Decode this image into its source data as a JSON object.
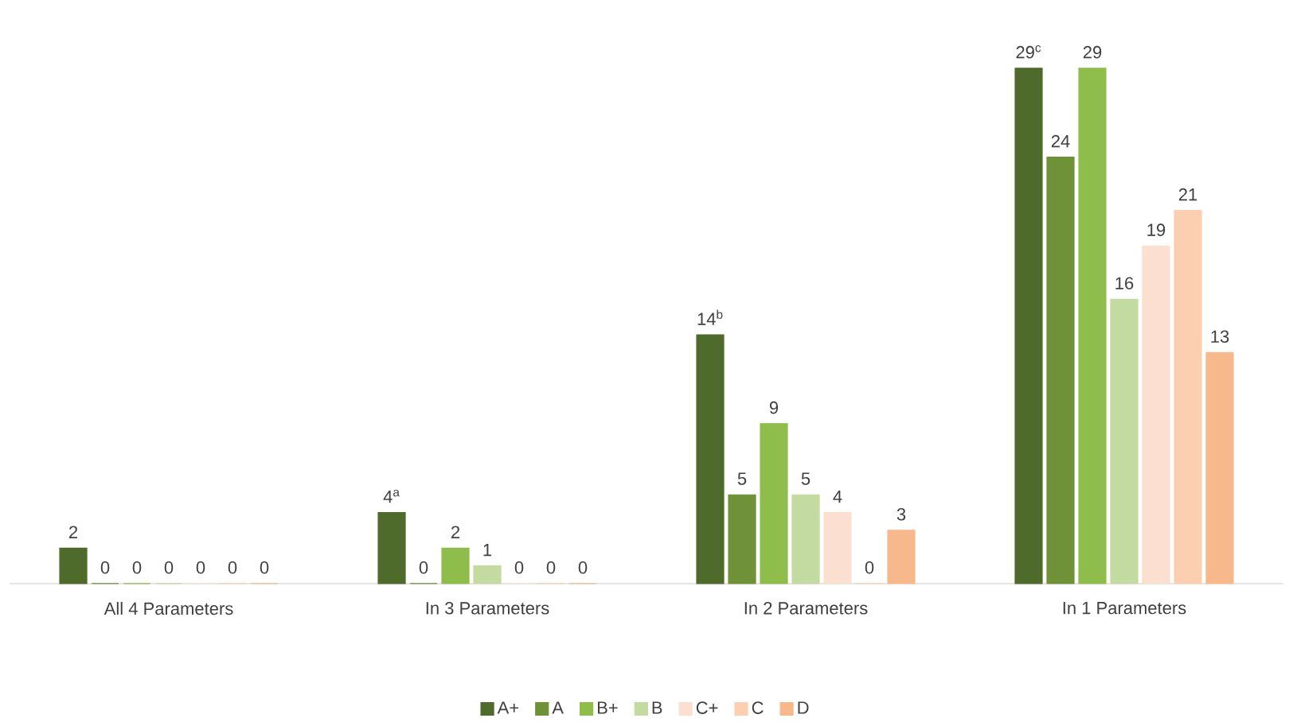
{
  "chart_data": {
    "type": "bar",
    "categories": [
      "All 4 Parameters",
      "In 3 Parameters",
      "In 2 Parameters",
      "In 1 Parameters"
    ],
    "series": [
      {
        "name": "A+",
        "color": "#4f6b2c",
        "values": [
          2,
          4,
          14,
          29
        ],
        "value_labels": [
          "2",
          "4$^{a}$",
          "14$^{b}$",
          "29$^{c}$"
        ]
      },
      {
        "name": "A",
        "color": "#6f9239",
        "values": [
          0,
          0,
          5,
          24
        ],
        "value_labels": [
          "0",
          "0",
          "5",
          "24"
        ]
      },
      {
        "name": "B+",
        "color": "#8fbd4b",
        "values": [
          0,
          2,
          9,
          29
        ],
        "value_labels": [
          "0",
          "2",
          "9",
          "29"
        ]
      },
      {
        "name": "B",
        "color": "#c3dba0",
        "values": [
          0,
          1,
          5,
          16
        ],
        "value_labels": [
          "0",
          "1",
          "5",
          "16"
        ]
      },
      {
        "name": "C+",
        "color": "#fbdfd0",
        "values": [
          0,
          0,
          4,
          19
        ],
        "value_labels": [
          "0",
          "0",
          "4",
          "19"
        ]
      },
      {
        "name": "C",
        "color": "#fbcfb0",
        "values": [
          0,
          0,
          0,
          21
        ],
        "value_labels": [
          "0",
          "0",
          "0",
          "21"
        ]
      },
      {
        "name": "D",
        "color": "#f7b98c",
        "values": [
          0,
          0,
          3,
          13
        ],
        "value_labels": [
          "0",
          "0",
          "3",
          "13"
        ]
      }
    ],
    "legend": "bottom"
  }
}
